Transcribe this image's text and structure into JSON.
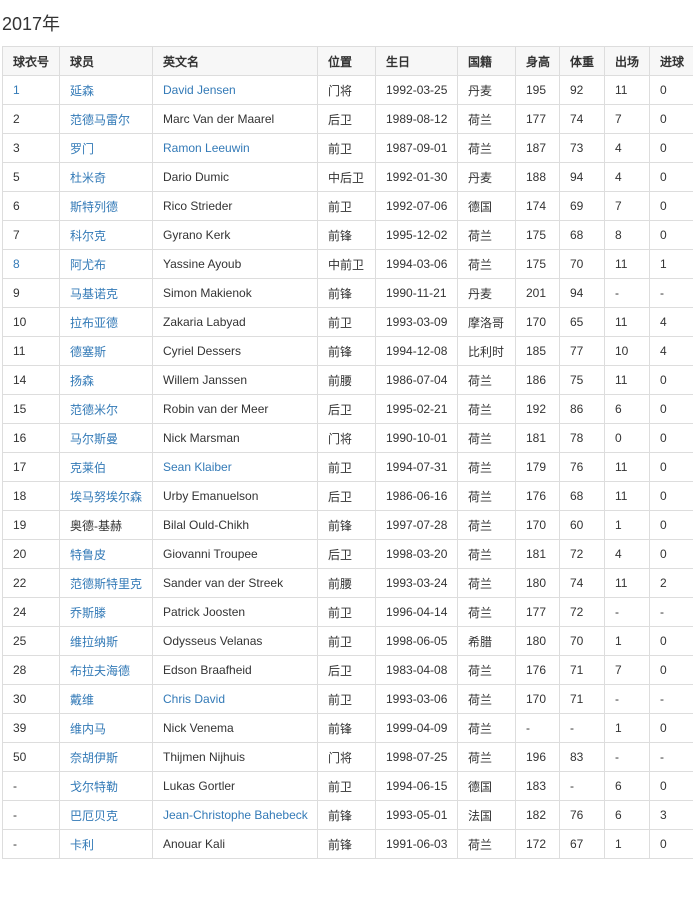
{
  "title": "2017年",
  "link_color": "#337ab7",
  "columns": [
    "球衣号",
    "球员",
    "英文名",
    "位置",
    "生日",
    "国籍",
    "身高",
    "体重",
    "出场",
    "进球"
  ],
  "rows": [
    {
      "no": "1",
      "cn": "延森",
      "en": "David Jensen",
      "pos": "门将",
      "dob": "1992-03-25",
      "nat": "丹麦",
      "h": "195",
      "w": "92",
      "apps": "11",
      "goals": "0",
      "no_link": true,
      "cn_link": true,
      "en_link": true
    },
    {
      "no": "2",
      "cn": "范德马雷尔",
      "en": "Marc Van der Maarel",
      "pos": "后卫",
      "dob": "1989-08-12",
      "nat": "荷兰",
      "h": "177",
      "w": "74",
      "apps": "7",
      "goals": "0",
      "cn_link": true
    },
    {
      "no": "3",
      "cn": "罗门",
      "en": "Ramon Leeuwin",
      "pos": "前卫",
      "dob": "1987-09-01",
      "nat": "荷兰",
      "h": "187",
      "w": "73",
      "apps": "4",
      "goals": "0",
      "cn_link": true,
      "en_link": true
    },
    {
      "no": "5",
      "cn": "杜米奇",
      "en": "Dario Dumic",
      "pos": "中后卫",
      "dob": "1992-01-30",
      "nat": "丹麦",
      "h": "188",
      "w": "94",
      "apps": "4",
      "goals": "0",
      "cn_link": true
    },
    {
      "no": "6",
      "cn": "斯特列德",
      "en": "Rico Strieder",
      "pos": "前卫",
      "dob": "1992-07-06",
      "nat": "德国",
      "h": "174",
      "w": "69",
      "apps": "7",
      "goals": "0",
      "cn_link": true
    },
    {
      "no": "7",
      "cn": "科尔克",
      "en": "Gyrano Kerk",
      "pos": "前锋",
      "dob": "1995-12-02",
      "nat": "荷兰",
      "h": "175",
      "w": "68",
      "apps": "8",
      "goals": "0",
      "cn_link": true
    },
    {
      "no": "8",
      "cn": "阿尤布",
      "en": "Yassine Ayoub",
      "pos": "中前卫",
      "dob": "1994-03-06",
      "nat": "荷兰",
      "h": "175",
      "w": "70",
      "apps": "11",
      "goals": "1",
      "no_link": true,
      "cn_link": true
    },
    {
      "no": "9",
      "cn": "马基诺克",
      "en": "Simon Makienok",
      "pos": "前锋",
      "dob": "1990-11-21",
      "nat": "丹麦",
      "h": "201",
      "w": "94",
      "apps": "-",
      "goals": "-",
      "cn_link": true
    },
    {
      "no": "10",
      "cn": "拉布亚德",
      "en": "Zakaria Labyad",
      "pos": "前卫",
      "dob": "1993-03-09",
      "nat": "摩洛哥",
      "h": "170",
      "w": "65",
      "apps": "11",
      "goals": "4",
      "cn_link": true
    },
    {
      "no": "11",
      "cn": "德塞斯",
      "en": "Cyriel Dessers",
      "pos": "前锋",
      "dob": "1994-12-08",
      "nat": "比利时",
      "h": "185",
      "w": "77",
      "apps": "10",
      "goals": "4",
      "cn_link": true
    },
    {
      "no": "14",
      "cn": "扬森",
      "en": "Willem Janssen",
      "pos": "前腰",
      "dob": "1986-07-04",
      "nat": "荷兰",
      "h": "186",
      "w": "75",
      "apps": "11",
      "goals": "0",
      "cn_link": true
    },
    {
      "no": "15",
      "cn": "范德米尔",
      "en": "Robin van der Meer",
      "pos": "后卫",
      "dob": "1995-02-21",
      "nat": "荷兰",
      "h": "192",
      "w": "86",
      "apps": "6",
      "goals": "0",
      "cn_link": true
    },
    {
      "no": "16",
      "cn": "马尔斯曼",
      "en": "Nick Marsman",
      "pos": "门将",
      "dob": "1990-10-01",
      "nat": "荷兰",
      "h": "181",
      "w": "78",
      "apps": "0",
      "goals": "0",
      "cn_link": true
    },
    {
      "no": "17",
      "cn": "克莱伯",
      "en": "Sean Klaiber",
      "pos": "前卫",
      "dob": "1994-07-31",
      "nat": "荷兰",
      "h": "179",
      "w": "76",
      "apps": "11",
      "goals": "0",
      "cn_link": true,
      "en_link": true
    },
    {
      "no": "18",
      "cn": "埃马努埃尔森",
      "en": "Urby Emanuelson",
      "pos": "后卫",
      "dob": "1986-06-16",
      "nat": "荷兰",
      "h": "176",
      "w": "68",
      "apps": "11",
      "goals": "0",
      "cn_link": true
    },
    {
      "no": "19",
      "cn": "奥德-基赫",
      "en": "Bilal Ould-Chikh",
      "pos": "前锋",
      "dob": "1997-07-28",
      "nat": "荷兰",
      "h": "170",
      "w": "60",
      "apps": "1",
      "goals": "0"
    },
    {
      "no": "20",
      "cn": "特鲁皮",
      "en": "Giovanni Troupee",
      "pos": "后卫",
      "dob": "1998-03-20",
      "nat": "荷兰",
      "h": "181",
      "w": "72",
      "apps": "4",
      "goals": "0",
      "cn_link": true
    },
    {
      "no": "22",
      "cn": "范德斯特里克",
      "en": "Sander van der Streek",
      "pos": "前腰",
      "dob": "1993-03-24",
      "nat": "荷兰",
      "h": "180",
      "w": "74",
      "apps": "11",
      "goals": "2",
      "cn_link": true
    },
    {
      "no": "24",
      "cn": "乔斯滕",
      "en": "Patrick Joosten",
      "pos": "前卫",
      "dob": "1996-04-14",
      "nat": "荷兰",
      "h": "177",
      "w": "72",
      "apps": "-",
      "goals": "-",
      "cn_link": true
    },
    {
      "no": "25",
      "cn": "维拉纳斯",
      "en": "Odysseus Velanas",
      "pos": "前卫",
      "dob": "1998-06-05",
      "nat": "希腊",
      "h": "180",
      "w": "70",
      "apps": "1",
      "goals": "0",
      "cn_link": true
    },
    {
      "no": "28",
      "cn": "布拉夫海德",
      "en": "Edson Braafheid",
      "pos": "后卫",
      "dob": "1983-04-08",
      "nat": "荷兰",
      "h": "176",
      "w": "71",
      "apps": "7",
      "goals": "0",
      "cn_link": true
    },
    {
      "no": "30",
      "cn": "戴维",
      "en": "Chris David",
      "pos": "前卫",
      "dob": "1993-03-06",
      "nat": "荷兰",
      "h": "170",
      "w": "71",
      "apps": "-",
      "goals": "-",
      "cn_link": true,
      "en_link": true
    },
    {
      "no": "39",
      "cn": "维内马",
      "en": "Nick Venema",
      "pos": "前锋",
      "dob": "1999-04-09",
      "nat": "荷兰",
      "h": "-",
      "w": "-",
      "apps": "1",
      "goals": "0",
      "cn_link": true
    },
    {
      "no": "50",
      "cn": "奈胡伊斯",
      "en": "Thijmen Nijhuis",
      "pos": "门将",
      "dob": "1998-07-25",
      "nat": "荷兰",
      "h": "196",
      "w": "83",
      "apps": "-",
      "goals": "-",
      "cn_link": true
    },
    {
      "no": "-",
      "cn": "戈尔特勒",
      "en": "Lukas Gortler",
      "pos": "前卫",
      "dob": "1994-06-15",
      "nat": "德国",
      "h": "183",
      "w": "-",
      "apps": "6",
      "goals": "0",
      "cn_link": true
    },
    {
      "no": "-",
      "cn": "巴厄贝克",
      "en": "Jean-Christophe Bahebeck",
      "pos": "前锋",
      "dob": "1993-05-01",
      "nat": "法国",
      "h": "182",
      "w": "76",
      "apps": "6",
      "goals": "3",
      "cn_link": true,
      "en_link": true
    },
    {
      "no": "-",
      "cn": "卡利",
      "en": "Anouar Kali",
      "pos": "前锋",
      "dob": "1991-06-03",
      "nat": "荷兰",
      "h": "172",
      "w": "67",
      "apps": "1",
      "goals": "0",
      "cn_link": true
    }
  ]
}
